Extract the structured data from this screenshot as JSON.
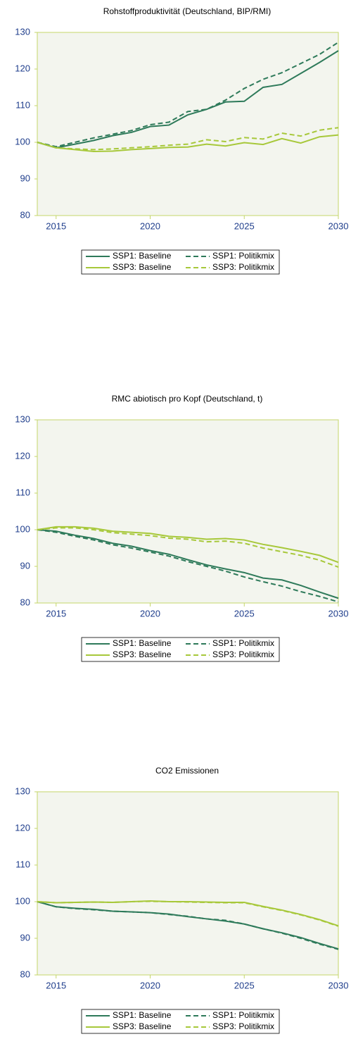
{
  "chart_data": [
    {
      "type": "line",
      "title": "Rohstoffproduktivität (Deutschland, BIP/RMI)",
      "x": [
        2014,
        2015,
        2016,
        2017,
        2018,
        2019,
        2020,
        2021,
        2022,
        2023,
        2024,
        2025,
        2026,
        2027,
        2028,
        2029,
        2030
      ],
      "xlim": [
        2014,
        2030
      ],
      "xticks": [
        2015,
        2020,
        2025,
        2030
      ],
      "ylim": [
        80,
        130
      ],
      "yticks": [
        80,
        90,
        100,
        110,
        120,
        130
      ],
      "series": [
        {
          "name": "SSP1: Baseline",
          "color": "#2e7a5a",
          "style": "solid",
          "values": [
            100,
            98.5,
            99.5,
            100.5,
            101.8,
            102.7,
            104.3,
            104.7,
            107.5,
            109,
            111,
            111.2,
            115,
            115.8,
            118.8,
            121.8,
            125
          ]
        },
        {
          "name": "SSP1: Politikmix",
          "color": "#2e7a5a",
          "style": "dashed",
          "values": [
            100,
            98.8,
            100,
            101.2,
            102.2,
            103.2,
            104.8,
            105.5,
            108.4,
            109,
            111.5,
            114.7,
            117.2,
            119,
            121.5,
            124,
            127.3
          ]
        },
        {
          "name": "SSP3: Baseline",
          "color": "#a7c83a",
          "style": "solid",
          "values": [
            100,
            98.5,
            98,
            97.5,
            97.6,
            98,
            98.3,
            98.6,
            98.7,
            99.5,
            99,
            99.9,
            99.4,
            101,
            99.8,
            101.5,
            102
          ]
        },
        {
          "name": "SSP3: Politikmix",
          "color": "#a7c83a",
          "style": "dashed",
          "values": [
            100,
            98.5,
            98.2,
            98,
            98.2,
            98.5,
            98.8,
            99.2,
            99.5,
            100.7,
            100.2,
            101.3,
            100.9,
            102.5,
            101.7,
            103.3,
            104
          ]
        }
      ]
    },
    {
      "type": "line",
      "title": "RMC abiotisch pro Kopf (Deutschland, t)",
      "x": [
        2014,
        2015,
        2016,
        2017,
        2018,
        2019,
        2020,
        2021,
        2022,
        2023,
        2024,
        2025,
        2026,
        2027,
        2028,
        2029,
        2030
      ],
      "xlim": [
        2014,
        2030
      ],
      "xticks": [
        2015,
        2020,
        2025,
        2030
      ],
      "ylim": [
        80,
        130
      ],
      "yticks": [
        80,
        90,
        100,
        110,
        120,
        130
      ],
      "series": [
        {
          "name": "SSP1: Baseline",
          "color": "#2e7a5a",
          "style": "solid",
          "values": [
            100,
            99.6,
            98.5,
            97.6,
            96.3,
            95.5,
            94.3,
            93.3,
            91.8,
            90.4,
            89.3,
            88.3,
            86.8,
            86.3,
            84.8,
            83,
            81.3
          ]
        },
        {
          "name": "SSP1: Politikmix",
          "color": "#2e7a5a",
          "style": "dashed",
          "values": [
            100,
            99.3,
            98.2,
            97.2,
            95.9,
            95,
            93.9,
            92.8,
            91.3,
            90,
            88.7,
            87.1,
            85.8,
            84.6,
            83.1,
            81.8,
            80.3
          ]
        },
        {
          "name": "SSP3: Baseline",
          "color": "#a7c83a",
          "style": "solid",
          "values": [
            100,
            100.8,
            100.8,
            100.4,
            99.6,
            99.3,
            99,
            98.2,
            97.9,
            97.4,
            97.6,
            97.2,
            96,
            95.1,
            94.1,
            93,
            91.1
          ]
        },
        {
          "name": "SSP3: Politikmix",
          "color": "#a7c83a",
          "style": "dashed",
          "values": [
            100,
            100.5,
            100.5,
            100,
            99.2,
            98.8,
            98.4,
            97.7,
            97.4,
            96.7,
            96.9,
            96.3,
            95,
            94,
            93,
            91.7,
            89.8
          ]
        }
      ]
    },
    {
      "type": "line",
      "title": "CO2 Emissionen",
      "x": [
        2014,
        2015,
        2016,
        2017,
        2018,
        2019,
        2020,
        2021,
        2022,
        2023,
        2024,
        2025,
        2026,
        2027,
        2028,
        2029,
        2030
      ],
      "xlim": [
        2014,
        2030
      ],
      "xticks": [
        2015,
        2020,
        2025,
        2030
      ],
      "ylim": [
        80,
        130
      ],
      "yticks": [
        80,
        90,
        100,
        110,
        120,
        130
      ],
      "series": [
        {
          "name": "SSP1: Baseline",
          "color": "#2e7a5a",
          "style": "solid",
          "values": [
            100,
            98.6,
            98.2,
            97.9,
            97.4,
            97.2,
            97,
            96.6,
            95.9,
            95.3,
            94.7,
            93.9,
            92.6,
            91.5,
            90.2,
            88.6,
            87.1
          ]
        },
        {
          "name": "SSP1: Politikmix",
          "color": "#2e7a5a",
          "style": "dashed",
          "values": [
            100,
            98.6,
            98.1,
            97.8,
            97.4,
            97.2,
            97,
            96.5,
            96,
            95.3,
            94.9,
            93.9,
            92.6,
            91.4,
            90,
            88.4,
            87
          ]
        },
        {
          "name": "SSP3: Baseline",
          "color": "#a7c83a",
          "style": "solid",
          "values": [
            100,
            99.7,
            99.8,
            99.9,
            99.8,
            100,
            100.2,
            100,
            100,
            99.9,
            99.8,
            99.8,
            98.7,
            97.7,
            96.5,
            95.1,
            93.4
          ]
        },
        {
          "name": "SSP3: Politikmix",
          "color": "#a7c83a",
          "style": "dashed",
          "values": [
            100,
            99.7,
            99.8,
            99.9,
            99.8,
            100,
            100.1,
            100,
            99.9,
            99.8,
            99.7,
            99.7,
            98.6,
            97.6,
            96.4,
            95,
            93.3
          ]
        }
      ]
    }
  ]
}
